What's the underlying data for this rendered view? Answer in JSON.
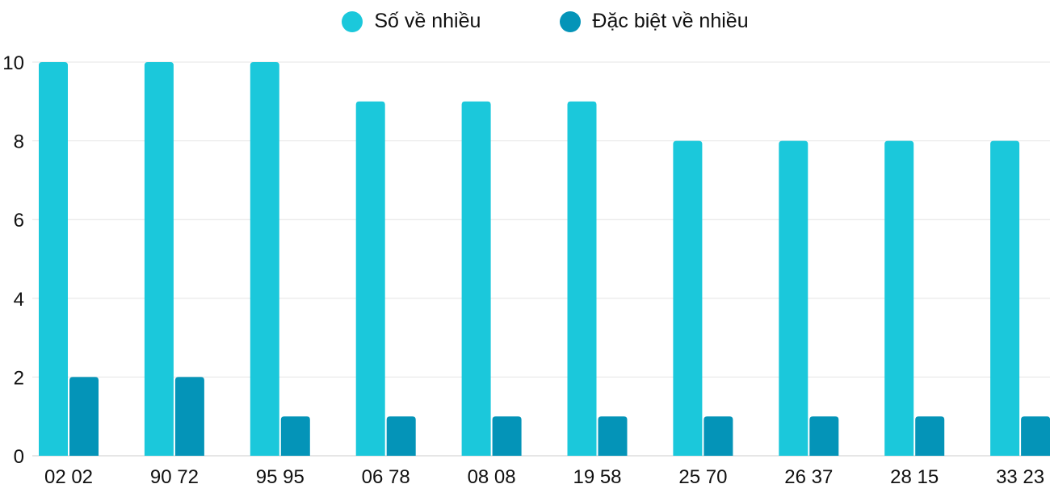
{
  "chart_data": {
    "type": "bar",
    "categories": [
      "02 02",
      "90 72",
      "95 95",
      "06 78",
      "08 08",
      "19 58",
      "25 70",
      "26 37",
      "28 15",
      "33 23"
    ],
    "series": [
      {
        "name": "Số về nhiều",
        "color": "#1BC8DB",
        "values": [
          10,
          10,
          10,
          9,
          9,
          9,
          8,
          8,
          8,
          8
        ]
      },
      {
        "name": "Đặc biệt về nhiều",
        "color": "#0494B8",
        "values": [
          2,
          2,
          1,
          1,
          1,
          1,
          1,
          1,
          1,
          1
        ]
      }
    ],
    "yticks": [
      "0",
      "2",
      "4",
      "6",
      "8",
      "10"
    ],
    "ylim": [
      0,
      10
    ],
    "grid": true,
    "legend": "top"
  }
}
